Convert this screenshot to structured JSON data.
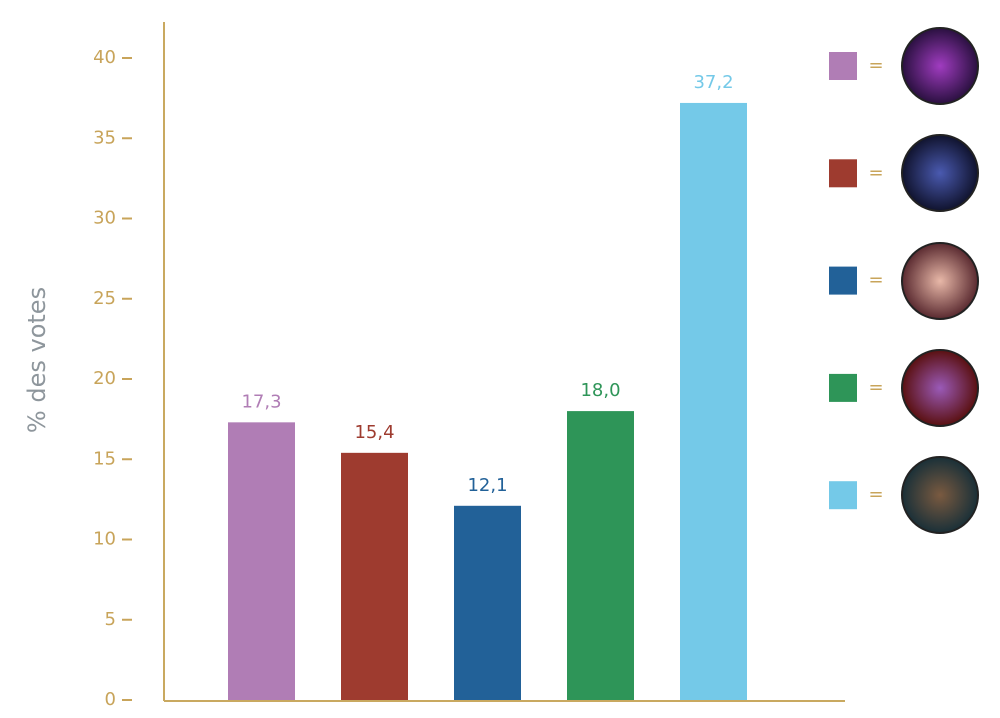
{
  "chart_data": {
    "type": "bar",
    "ylabel": "% des votes",
    "categories": [
      null,
      null,
      null,
      null,
      null
    ],
    "values": [
      17.3,
      15.4,
      12.1,
      18.0,
      37.2
    ],
    "value_labels": [
      "17,3",
      "15,4",
      "12,1",
      "18,0",
      "37,2"
    ],
    "colors": [
      "#b07db5",
      "#9e3b2f",
      "#226198",
      "#2e9558",
      "#74c9e8"
    ],
    "ylim": [
      0,
      40
    ],
    "yticks": [
      0,
      5,
      10,
      15,
      20,
      25,
      30,
      35,
      40
    ],
    "legend_separator": "="
  }
}
